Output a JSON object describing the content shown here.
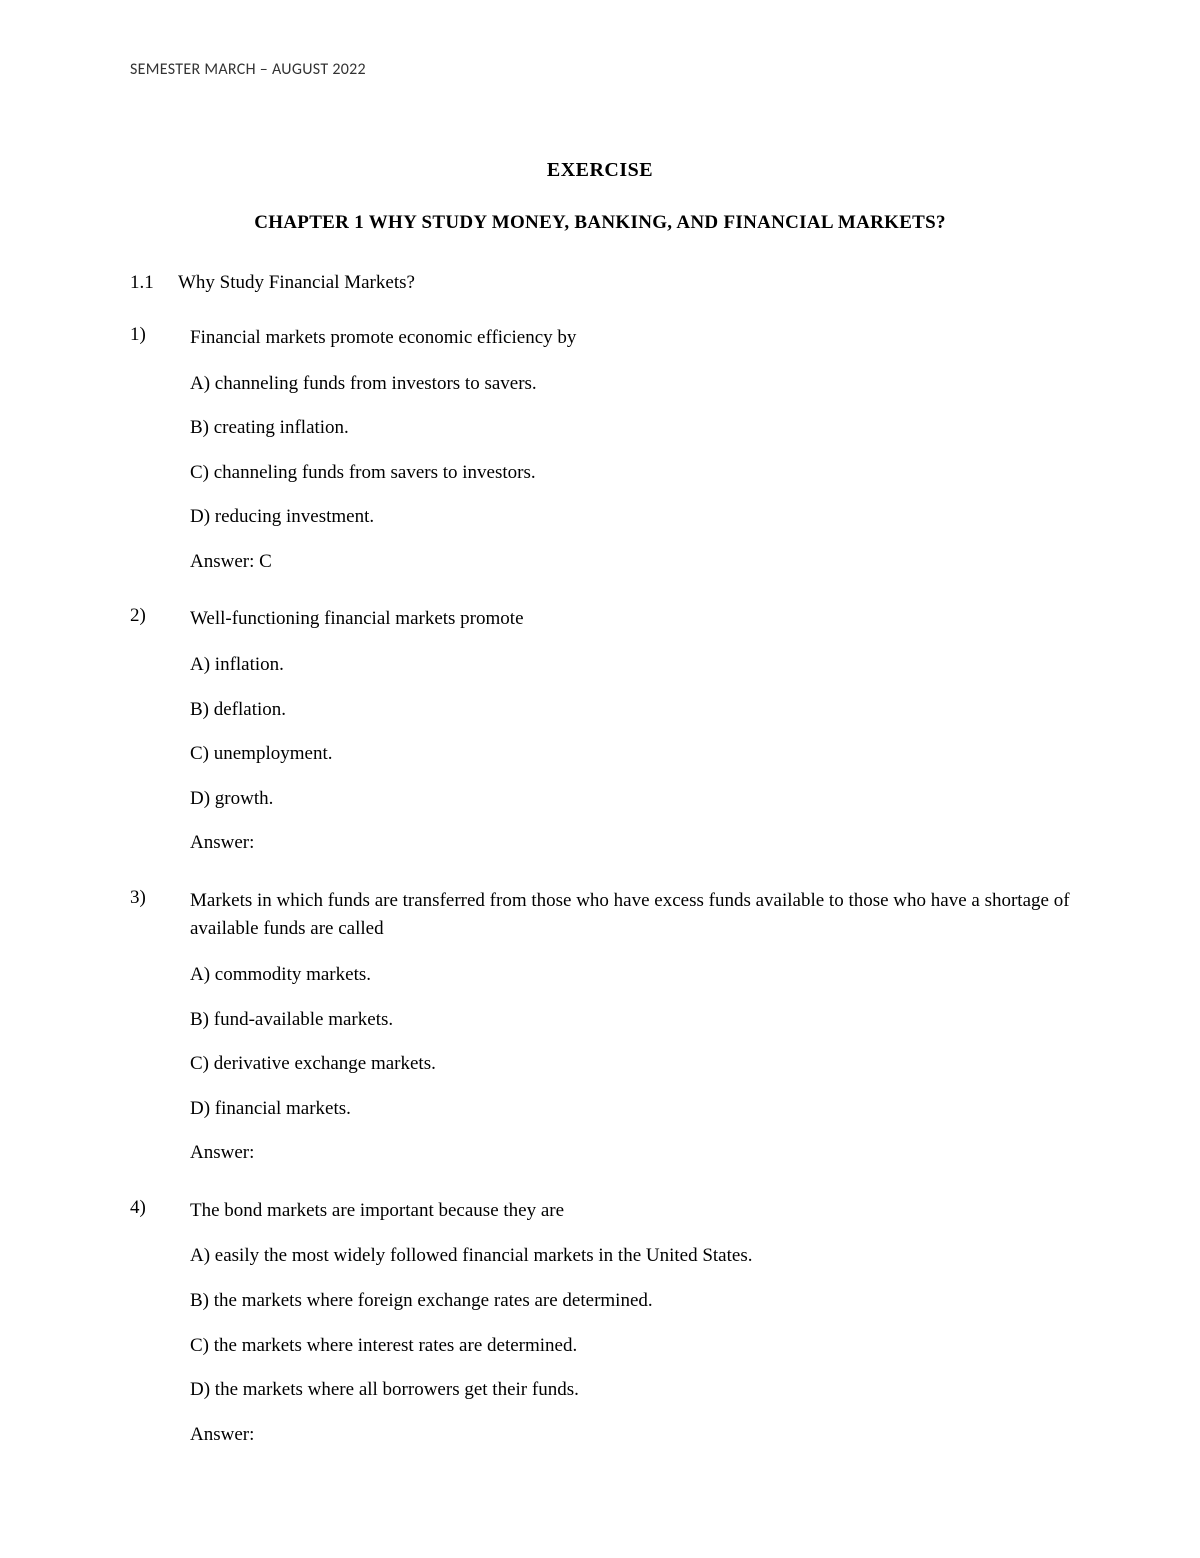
{
  "header": "SEMESTER MARCH – AUGUST 2022",
  "exerciseTitle": "EXERCISE",
  "chapterTitle": "CHAPTER 1   WHY STUDY MONEY, BANKING, AND FINANCIAL MARKETS?",
  "section": {
    "number": "1.1",
    "title": "Why Study Financial Markets?"
  },
  "questions": [
    {
      "number": "1)",
      "stem": "Financial markets promote economic efficiency by",
      "options": [
        "A) channeling funds from investors to savers.",
        "B) creating inflation.",
        "C) channeling funds from savers to investors.",
        "D) reducing investment."
      ],
      "answer": "Answer:  C"
    },
    {
      "number": "2)",
      "stem": "Well-functioning financial markets promote",
      "options": [
        "A) inflation.",
        "B) deflation.",
        "C) unemployment.",
        "D) growth."
      ],
      "answer": "Answer:"
    },
    {
      "number": "3)",
      "stem": "Markets in which funds are transferred from those who have excess funds available to those who have a shortage of available funds are called",
      "options": [
        "A) commodity markets.",
        "B) fund-available markets.",
        "C) derivative exchange markets.",
        "D) financial markets."
      ],
      "answer": "Answer:"
    },
    {
      "number": "4)",
      "stem": "The bond markets are important because they are",
      "options": [
        "A) easily the most widely followed financial markets in the United States.",
        "B) the markets where foreign exchange rates are determined.",
        "C) the markets where interest rates are determined.",
        "D) the markets where all borrowers get their funds."
      ],
      "answer": "Answer:"
    }
  ]
}
